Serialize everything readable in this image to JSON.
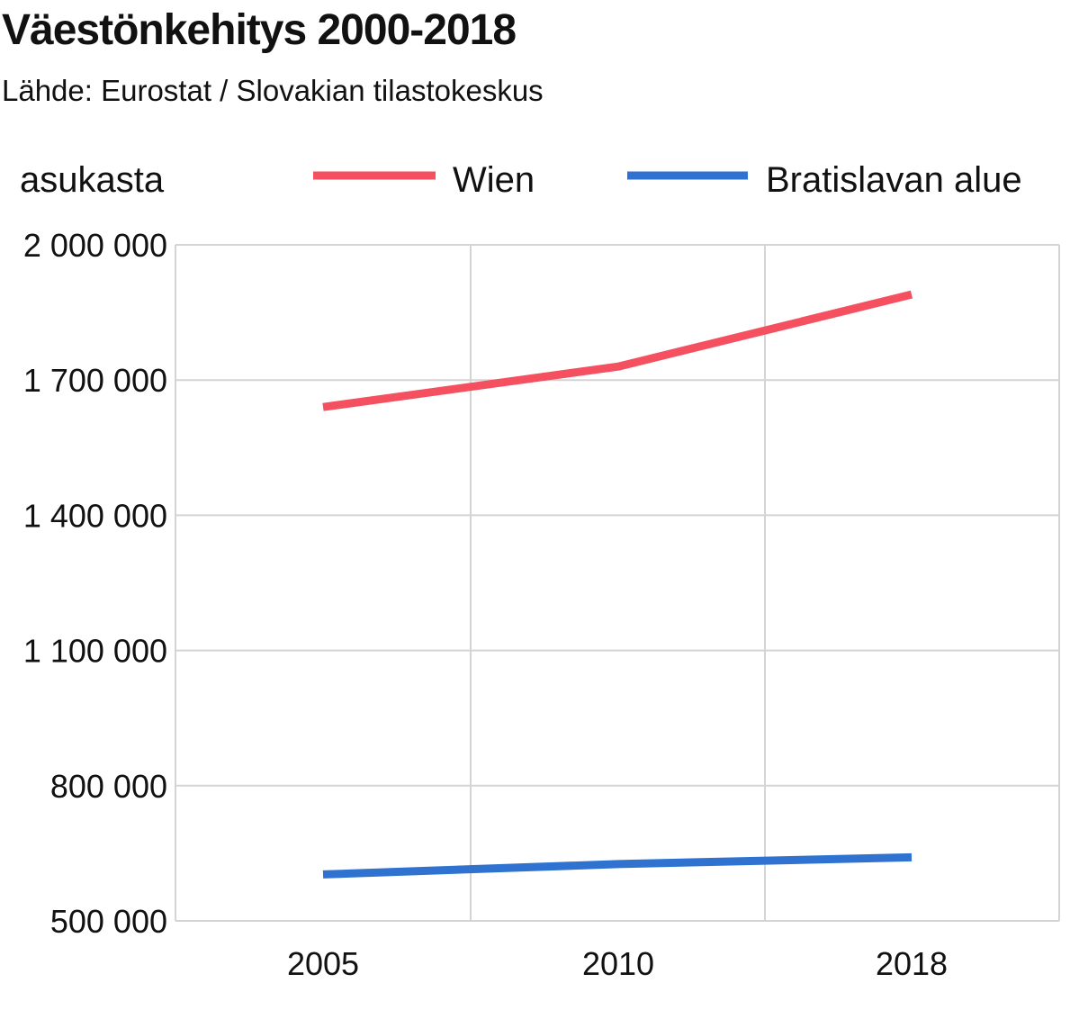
{
  "header": {
    "title": "Väestönkehitys 2000-2018",
    "subtitle": "Lähde: Eurostat / Slovakian tilastokeskus"
  },
  "chart_data": {
    "type": "line",
    "title": "Väestönkehitys 2000-2018",
    "subtitle": "Lähde: Eurostat / Slovakian tilastokeskus",
    "ylabel": "asukasta",
    "xlabel": "",
    "x": [
      2005,
      2010,
      2018
    ],
    "x_tick_labels": [
      "2005",
      "2010",
      "2018"
    ],
    "ylim": [
      500000,
      2000000
    ],
    "y_ticks": [
      500000,
      800000,
      1100000,
      1400000,
      1700000,
      2000000
    ],
    "y_tick_labels": [
      "500 000",
      "800 000",
      "1 100 000",
      "1 400 000",
      "1 700 000",
      "2 000 000"
    ],
    "grid": true,
    "legend_position": "top",
    "series": [
      {
        "name": "Wien",
        "color": "#f4505f",
        "values": [
          1640000,
          1730000,
          1890000
        ]
      },
      {
        "name": "Bratislavan alue",
        "color": "#2f72d0",
        "values": [
          603000,
          626000,
          641000
        ]
      }
    ]
  }
}
